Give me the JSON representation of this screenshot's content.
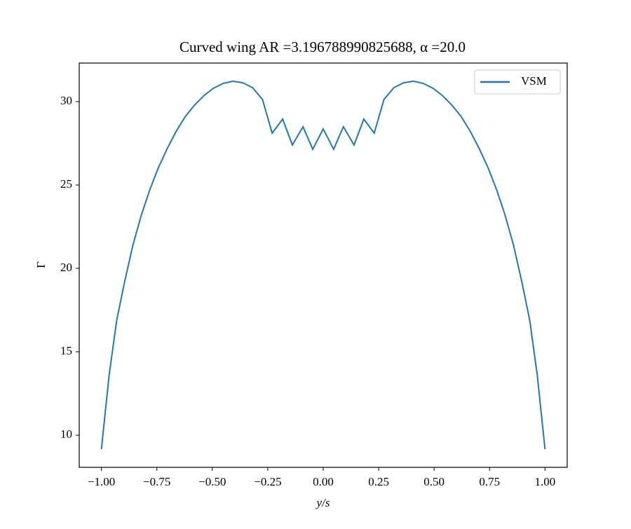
{
  "chart_data": {
    "type": "line",
    "title": "Curved wing AR =3.196788990825688, α =20.0",
    "x_label": "y/s",
    "y_label": "Γ",
    "x": [
      -1.0,
      -0.965,
      -0.931,
      -0.896,
      -0.858,
      -0.82,
      -0.782,
      -0.744,
      -0.703,
      -0.662,
      -0.621,
      -0.58,
      -0.536,
      -0.495,
      -0.451,
      -0.407,
      -0.363,
      -0.319,
      -0.274,
      -0.23,
      -0.183,
      -0.139,
      -0.091,
      -0.047,
      0.0,
      0.047,
      0.091,
      0.139,
      0.183,
      0.23,
      0.274,
      0.319,
      0.363,
      0.407,
      0.451,
      0.495,
      0.536,
      0.58,
      0.621,
      0.662,
      0.703,
      0.744,
      0.782,
      0.82,
      0.858,
      0.896,
      0.931,
      0.965,
      1.0
    ],
    "series": [
      {
        "name": "VSM",
        "color": "#1f77b4",
        "values": [
          9.16,
          13.61,
          16.89,
          19.16,
          21.39,
          23.19,
          24.71,
          26.01,
          27.19,
          28.24,
          29.12,
          29.79,
          30.38,
          30.8,
          31.09,
          31.22,
          31.13,
          30.84,
          30.13,
          28.11,
          28.95,
          27.4,
          28.49,
          27.14,
          28.36,
          27.14,
          28.49,
          27.4,
          28.95,
          28.11,
          30.13,
          30.84,
          31.13,
          31.22,
          31.09,
          30.8,
          30.38,
          29.79,
          29.12,
          28.24,
          27.19,
          26.01,
          24.71,
          23.19,
          21.39,
          19.16,
          16.89,
          13.61,
          9.16
        ]
      }
    ],
    "xlim": [
      -1.1,
      1.1
    ],
    "ylim": [
      8.07,
      32.31
    ],
    "xticks": [
      {
        "value": -1.0,
        "label": "−1.00"
      },
      {
        "value": -0.75,
        "label": "−0.75"
      },
      {
        "value": -0.5,
        "label": "−0.50"
      },
      {
        "value": -0.25,
        "label": "−0.25"
      },
      {
        "value": 0.0,
        "label": "0.00"
      },
      {
        "value": 0.25,
        "label": "0.25"
      },
      {
        "value": 0.5,
        "label": "0.50"
      },
      {
        "value": 0.75,
        "label": "0.75"
      },
      {
        "value": 1.0,
        "label": "1.00"
      }
    ],
    "yticks": [
      10,
      15,
      20,
      25,
      30
    ],
    "legend": "upper right",
    "grid": false
  }
}
